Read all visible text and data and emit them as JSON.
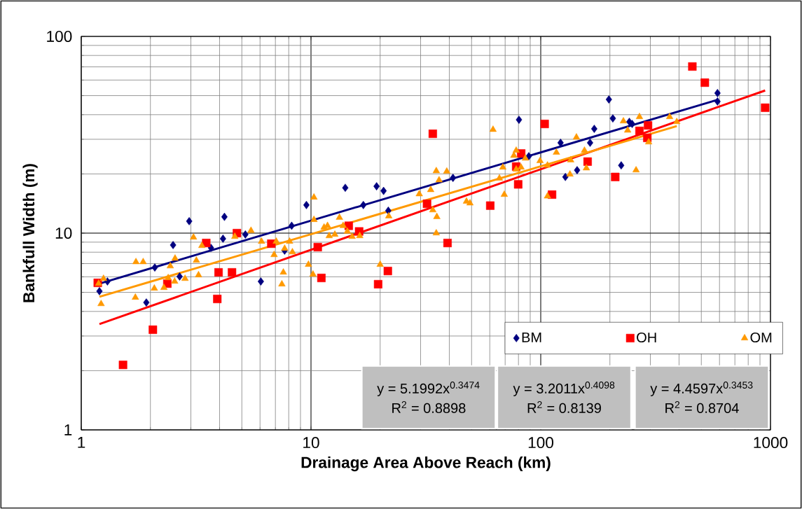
{
  "chart_data": {
    "type": "scatter",
    "xlabel": "Drainage Area Above Reach (km)",
    "ylabel": "Bankfull Width (m)",
    "log": "xy",
    "xlim": [
      1,
      1000
    ],
    "ylim": [
      1,
      100
    ],
    "xticks": [
      1,
      10,
      100,
      1000
    ],
    "yticks": [
      1,
      10,
      100
    ],
    "grid": true,
    "legend": "bottom right",
    "annotations": [
      "y = 5.1992x$^{0.3474}$",
      "R$^{2}$ = 0.8898",
      "y = 3.2011x$^{0.4098}$",
      "R$^{2}$ = 0.8139",
      "y = 4.4597x$^{0.3453}$",
      "R$^{2}$ = 0.8704"
    ],
    "series": [
      {
        "name": "BM",
        "marker": "diamond",
        "color": "#000080",
        "x": [
          1.2,
          1.3,
          1.92,
          2.09,
          2.51,
          2.68,
          2.95,
          3.67,
          4.14,
          4.2,
          5.18,
          6.05,
          7.68,
          8.24,
          9.55,
          14.1,
          16.9,
          19.3,
          20.7,
          21.7,
          41.5,
          80.4,
          88.7,
          122,
          128,
          144,
          164,
          171,
          198,
          206,
          224,
          243,
          250,
          588,
          588
        ],
        "values": [
          5.07,
          5.68,
          4.44,
          6.69,
          8.7,
          6.02,
          11.5,
          8.42,
          9.37,
          12.1,
          9.84,
          5.68,
          8.15,
          10.9,
          13.9,
          17.0,
          13.9,
          17.3,
          16.4,
          13.0,
          19.1,
          37.7,
          24.6,
          28.8,
          19.3,
          20.9,
          28.8,
          33.9,
          47.8,
          38.3,
          22.1,
          36.8,
          35.9,
          51.5,
          46.7
        ]
      },
      {
        "name": "OH",
        "marker": "square",
        "color": "#ff0000",
        "x": [
          1.18,
          1.52,
          2.05,
          2.37,
          3.5,
          3.91,
          3.96,
          4.53,
          4.76,
          6.72,
          10.7,
          11.1,
          14.6,
          16.2,
          19.6,
          21.6,
          32.0,
          39.3,
          33.9,
          60.3,
          79.8,
          78.2,
          82.2,
          104,
          112,
          160,
          211,
          269,
          293,
          291,
          457,
          518,
          948
        ],
        "values": [
          5.59,
          2.14,
          3.23,
          5.54,
          8.91,
          4.63,
          6.32,
          6.32,
          10.0,
          8.84,
          8.49,
          5.92,
          10.9,
          10.2,
          5.5,
          6.42,
          14.1,
          8.91,
          32.0,
          13.8,
          17.7,
          21.8,
          25.4,
          35.9,
          15.7,
          23.1,
          19.3,
          33.1,
          35.3,
          30.5,
          70.3,
          58.2,
          43.4
        ]
      },
      {
        "name": "OM",
        "marker": "triangle",
        "color": "#ff9900",
        "x": [
          1.22,
          1.19,
          1.25,
          1.72,
          1.73,
          1.86,
          2.08,
          2.29,
          2.39,
          2.44,
          2.56,
          2.55,
          2.83,
          3.17,
          3.24,
          3.35,
          3.08,
          4.66,
          5.48,
          6.09,
          6.91,
          7.06,
          7.58,
          7.47,
          7.68,
          8.07,
          8.3,
          9.75,
          10.2,
          10.3,
          10.3,
          11.4,
          11.8,
          12.0,
          12.7,
          13.3,
          13.8,
          14.4,
          15.1,
          16.3,
          20.0,
          21.8,
          29.6,
          33.2,
          33.9,
          35.3,
          35.1,
          35.1,
          36.1,
          39.0,
          47.5,
          49.2,
          62.0,
          66.1,
          68.4,
          69.4,
          76.4,
          78.2,
          78.2,
          82.1,
          85.7,
          99.3,
          107,
          107,
          117,
          134,
          135,
          143,
          155,
          158,
          229,
          239,
          260,
          269,
          295,
          364,
          391
        ],
        "values": [
          4.37,
          5.54,
          5.87,
          4.71,
          7.14,
          7.14,
          5.24,
          5.28,
          5.92,
          6.8,
          7.44,
          5.68,
          5.87,
          7.26,
          6.12,
          8.63,
          9.52,
          9.6,
          10.3,
          9.07,
          7.76,
          9.07,
          6.32,
          5.5,
          8.35,
          9.07,
          8.01,
          6.92,
          6.17,
          15.2,
          11.7,
          10.7,
          10.9,
          9.68,
          9.84,
          12.0,
          10.9,
          10.2,
          9.6,
          9.68,
          6.92,
          12.2,
          15.8,
          16.6,
          13.1,
          12.1,
          10.0,
          20.7,
          18.6,
          20.6,
          14.5,
          14.2,
          33.6,
          19.0,
          21.6,
          15.7,
          24.8,
          26.3,
          21.1,
          21.6,
          24.0,
          23.3,
          22.1,
          15.4,
          25.7,
          19.9,
          23.5,
          30.7,
          26.3,
          21.4,
          37.1,
          33.3,
          20.9,
          39.0,
          29.0,
          39.0,
          36.8
        ]
      },
      {
        "type": "line",
        "marker": "none",
        "color": "#000080",
        "x": [
          1.2,
          588
        ],
        "values": [
          5.54,
          47.6
        ]
      },
      {
        "type": "line",
        "marker": "none",
        "color": "#ff0000",
        "x": [
          1.2,
          948
        ],
        "values": [
          3.45,
          53.1
        ]
      },
      {
        "type": "line",
        "marker": "none",
        "color": "#ff9900",
        "x": [
          1.2,
          391
        ],
        "values": [
          4.75,
          35.0
        ]
      }
    ]
  }
}
